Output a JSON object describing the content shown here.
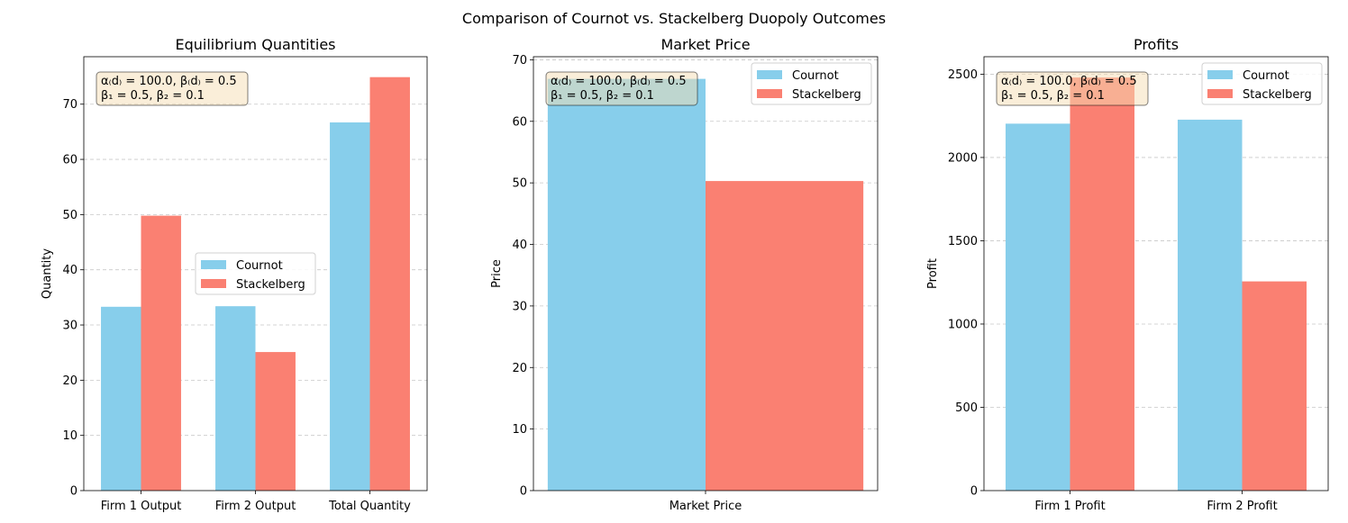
{
  "suptitle": "Comparison of Cournot vs. Stackelberg Duopoly Outcomes",
  "colors": {
    "cournot": "#87ceeb",
    "stackelberg": "#fa8072",
    "annotation_bg": "#f5deb3",
    "grid": "#c8c8c8"
  },
  "chart_data": [
    {
      "type": "bar",
      "title": "Equilibrium Quantities",
      "xlabel": "",
      "ylabel": "Quantity",
      "categories": [
        "Firm 1 Output",
        "Firm 2 Output",
        "Total Quantity"
      ],
      "series": [
        {
          "name": "Cournot",
          "values": [
            33.3,
            33.4,
            66.7
          ]
        },
        {
          "name": "Stackelberg",
          "values": [
            49.8,
            25.1,
            74.9
          ]
        }
      ],
      "ylim": [
        0,
        78.6
      ],
      "yticks": [
        0,
        10,
        20,
        30,
        40,
        50,
        60,
        70
      ],
      "grid": "y-dashed",
      "legend": "center-right",
      "annotation": [
        "α₍d₎ = 100.0, β₍d₎ = 0.5",
        "β₁ = 0.5, β₂ = 0.1"
      ]
    },
    {
      "type": "bar",
      "title": "Market Price",
      "xlabel": "",
      "ylabel": "Price",
      "categories": [
        "Market Price"
      ],
      "series": [
        {
          "name": "Cournot",
          "values": [
            66.9
          ]
        },
        {
          "name": "Stackelberg",
          "values": [
            50.3
          ]
        }
      ],
      "ylim": [
        0,
        70.5
      ],
      "yticks": [
        0,
        10,
        20,
        30,
        40,
        50,
        60,
        70
      ],
      "grid": "y-dashed",
      "legend": "top-right",
      "annotation": [
        "α₍d₎ = 100.0, β₍d₎ = 0.5",
        "β₁ = 0.5, β₂ = 0.1"
      ]
    },
    {
      "type": "bar",
      "title": "Profits",
      "xlabel": "",
      "ylabel": "Profit",
      "categories": [
        "Firm 1 Profit",
        "Firm 2 Profit"
      ],
      "series": [
        {
          "name": "Cournot",
          "values": [
            2203,
            2227
          ]
        },
        {
          "name": "Stackelberg",
          "values": [
            2480,
            1256
          ]
        }
      ],
      "ylim": [
        0,
        2605
      ],
      "yticks": [
        0,
        500,
        1000,
        1500,
        2000,
        2500
      ],
      "grid": "y-dashed",
      "legend": "top-right",
      "annotation": [
        "α₍d₎ = 100.0, β₍d₎ = 0.5",
        "β₁ = 0.5, β₂ = 0.1"
      ]
    }
  ]
}
